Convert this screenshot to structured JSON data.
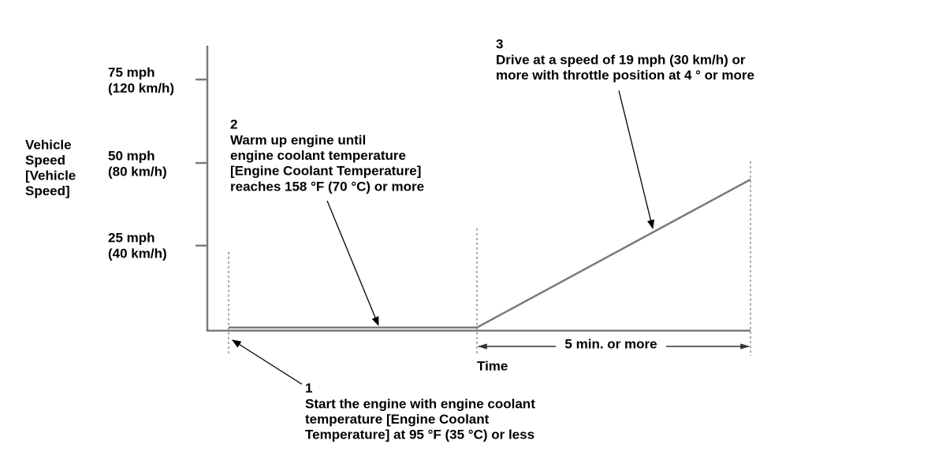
{
  "y_axis": {
    "label": [
      "Vehicle",
      "Speed",
      "[Vehicle",
      "Speed]"
    ],
    "ticks": [
      {
        "lines": [
          "75 mph",
          "(120 km/h)"
        ]
      },
      {
        "lines": [
          "50 mph",
          "(80 km/h)"
        ]
      },
      {
        "lines": [
          "25 mph",
          "(40 km/h)"
        ]
      }
    ]
  },
  "x_axis": {
    "label": "Time",
    "duration": "5 min. or more"
  },
  "steps": [
    {
      "number": "1",
      "lines": [
        "Start the engine with engine coolant",
        "temperature [Engine Coolant",
        "Temperature] at 95 °F (35 °C) or less"
      ]
    },
    {
      "number": "2",
      "lines": [
        "Warm up engine until",
        "engine coolant temperature",
        "[Engine Coolant Temperature]",
        "reaches 158 °F (70 °C) or more"
      ]
    },
    {
      "number": "3",
      "lines": [
        "Drive at a speed of 19 mph (30 km/h) or",
        "more with throttle position at 4 ° or more"
      ]
    }
  ]
}
